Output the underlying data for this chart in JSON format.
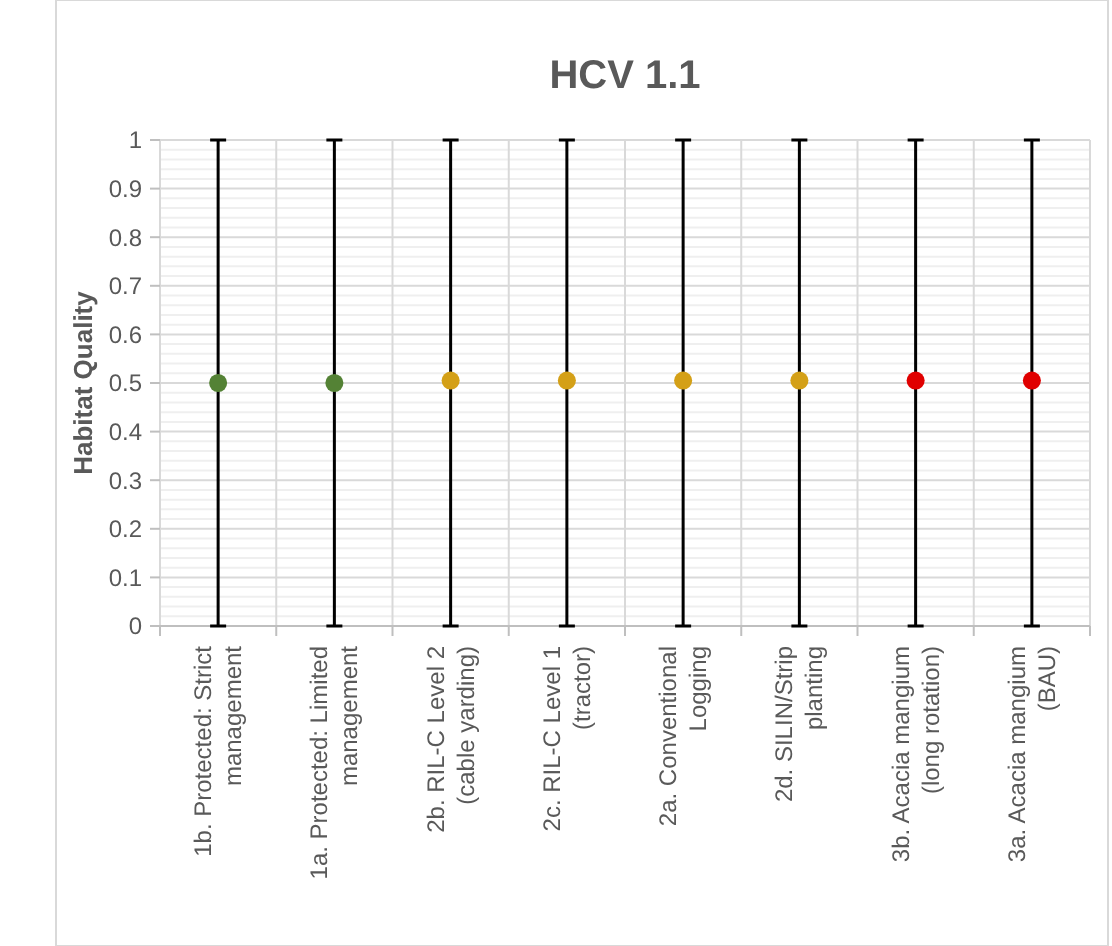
{
  "chart_data": {
    "type": "scatter",
    "title": "HCV 1.1",
    "ylabel": "Habitat Quality",
    "categories": [
      "1b. Protected: Strict management",
      "1a. Protected: Limited management",
      "2b. RIL-C Level 2 (cable yarding)",
      "2c. RIL-C Level 1 (tractor)",
      "2a. Conventional Logging",
      "2d. SILIN/Strip planting",
      "3b. Acacia mangium (long rotation)",
      "3a. Acacia mangium (BAU)"
    ],
    "values": [
      0.5,
      0.5,
      0.505,
      0.505,
      0.505,
      0.505,
      0.505,
      0.505
    ],
    "colors": [
      "#548235",
      "#548235",
      "#d4a017",
      "#d4a017",
      "#d4a017",
      "#d4a017",
      "#e00000",
      "#e00000"
    ],
    "errors": [
      [
        0,
        1
      ],
      [
        0,
        1
      ],
      [
        0,
        1
      ],
      [
        0,
        1
      ],
      [
        0,
        1
      ],
      [
        0,
        1
      ],
      [
        0,
        1
      ],
      [
        0,
        1
      ]
    ],
    "ylim": [
      0,
      1
    ],
    "yticks": [
      0,
      0.1,
      0.2,
      0.3,
      0.4,
      0.5,
      0.6,
      0.7,
      0.8,
      0.9,
      1
    ],
    "grid": true,
    "marker": "circle"
  }
}
